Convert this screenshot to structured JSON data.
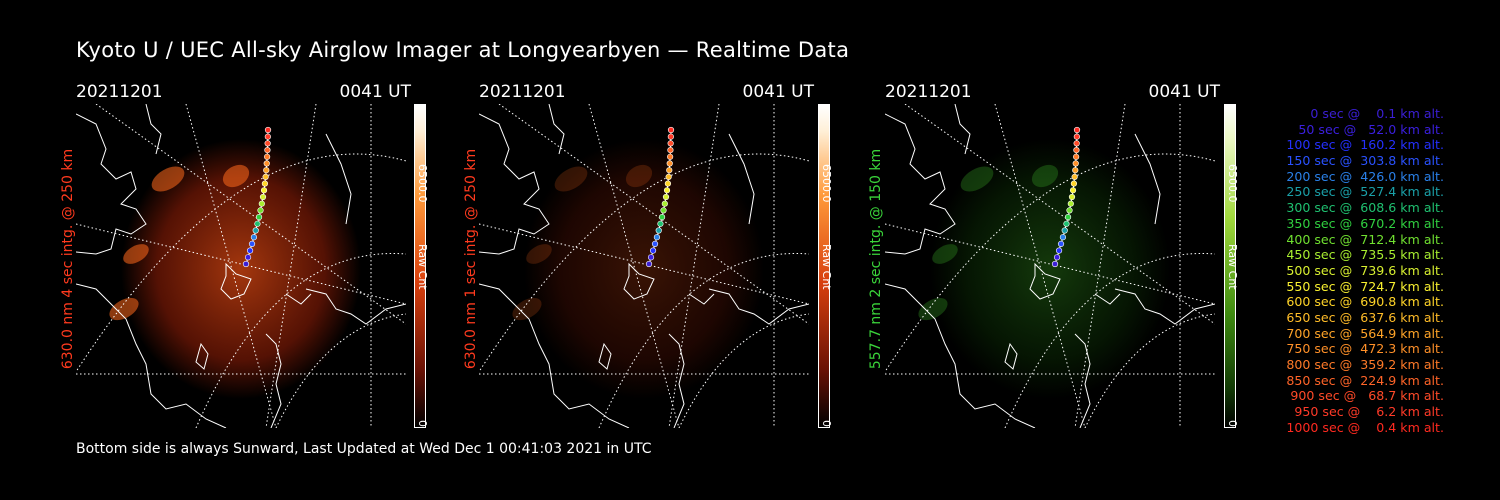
{
  "title": "Kyoto U / UEC All-sky Airglow Imager at Longyearbyen — Realtime Data",
  "footer": "Bottom side is always Sunward, Last Updated at Wed Dec  1 00:41:03 2021 in UTC",
  "panels": [
    {
      "date": "20211201",
      "time": "0041 UT",
      "side_label": "630.0 nm 4 sec intg. @ 250 km",
      "label_color": "#ff3a1e",
      "colorbar_max": "6500.0",
      "colorbar_unit": "Raw Cnt",
      "colorbar_min": "0",
      "colormap": "red",
      "intensity": 1.0
    },
    {
      "date": "20211201",
      "time": "0041 UT",
      "side_label": "630.0 nm 1 sec intg. @ 250 km",
      "label_color": "#ff3a1e",
      "colorbar_max": "6500.0",
      "colorbar_unit": "Raw Cnt",
      "colorbar_min": "0",
      "colormap": "red",
      "intensity": 0.35
    },
    {
      "date": "20211201",
      "time": "0041 UT",
      "side_label": "557.7 nm 2 sec intg. @ 150 km",
      "label_color": "#3ad43a",
      "colorbar_max": "6500.0",
      "colorbar_unit": "Raw Cnt",
      "colorbar_min": "0",
      "colormap": "green",
      "intensity": 0.55
    }
  ],
  "legend": [
    {
      "text": "   0 sec @    0.1 km alt.",
      "color": "#3b1fd6"
    },
    {
      "text": "  50 sec @   52.0 km alt.",
      "color": "#3b1fe0"
    },
    {
      "text": " 100 sec @  160.2 km alt.",
      "color": "#2430ff"
    },
    {
      "text": " 150 sec @  303.8 km alt.",
      "color": "#2a52ff"
    },
    {
      "text": " 200 sec @  426.0 km alt.",
      "color": "#2a80e8"
    },
    {
      "text": " 250 sec @  527.4 km alt.",
      "color": "#1aa0a8"
    },
    {
      "text": " 300 sec @  608.6 km alt.",
      "color": "#1fc070"
    },
    {
      "text": " 350 sec @  670.2 km alt.",
      "color": "#30d040"
    },
    {
      "text": " 400 sec @  712.4 km alt.",
      "color": "#70e030"
    },
    {
      "text": " 450 sec @  735.5 km alt.",
      "color": "#a8ee30"
    },
    {
      "text": " 500 sec @  739.6 km alt.",
      "color": "#d8f030"
    },
    {
      "text": " 550 sec @  724.7 km alt.",
      "color": "#f8f030"
    },
    {
      "text": " 600 sec @  690.8 km alt.",
      "color": "#ffd428"
    },
    {
      "text": " 650 sec @  637.6 km alt.",
      "color": "#ffbc28"
    },
    {
      "text": " 700 sec @  564.9 km alt.",
      "color": "#ffa428"
    },
    {
      "text": " 750 sec @  472.3 km alt.",
      "color": "#ff9028"
    },
    {
      "text": " 800 sec @  359.2 km alt.",
      "color": "#ff7a28"
    },
    {
      "text": " 850 sec @  224.9 km alt.",
      "color": "#ff6428"
    },
    {
      "text": " 900 sec @   68.7 km alt.",
      "color": "#ff4a28"
    },
    {
      "text": " 950 sec @    6.2 km alt.",
      "color": "#ff3a28"
    },
    {
      "text": "1000 sec @    0.4 km alt.",
      "color": "#ff2a20"
    }
  ]
}
